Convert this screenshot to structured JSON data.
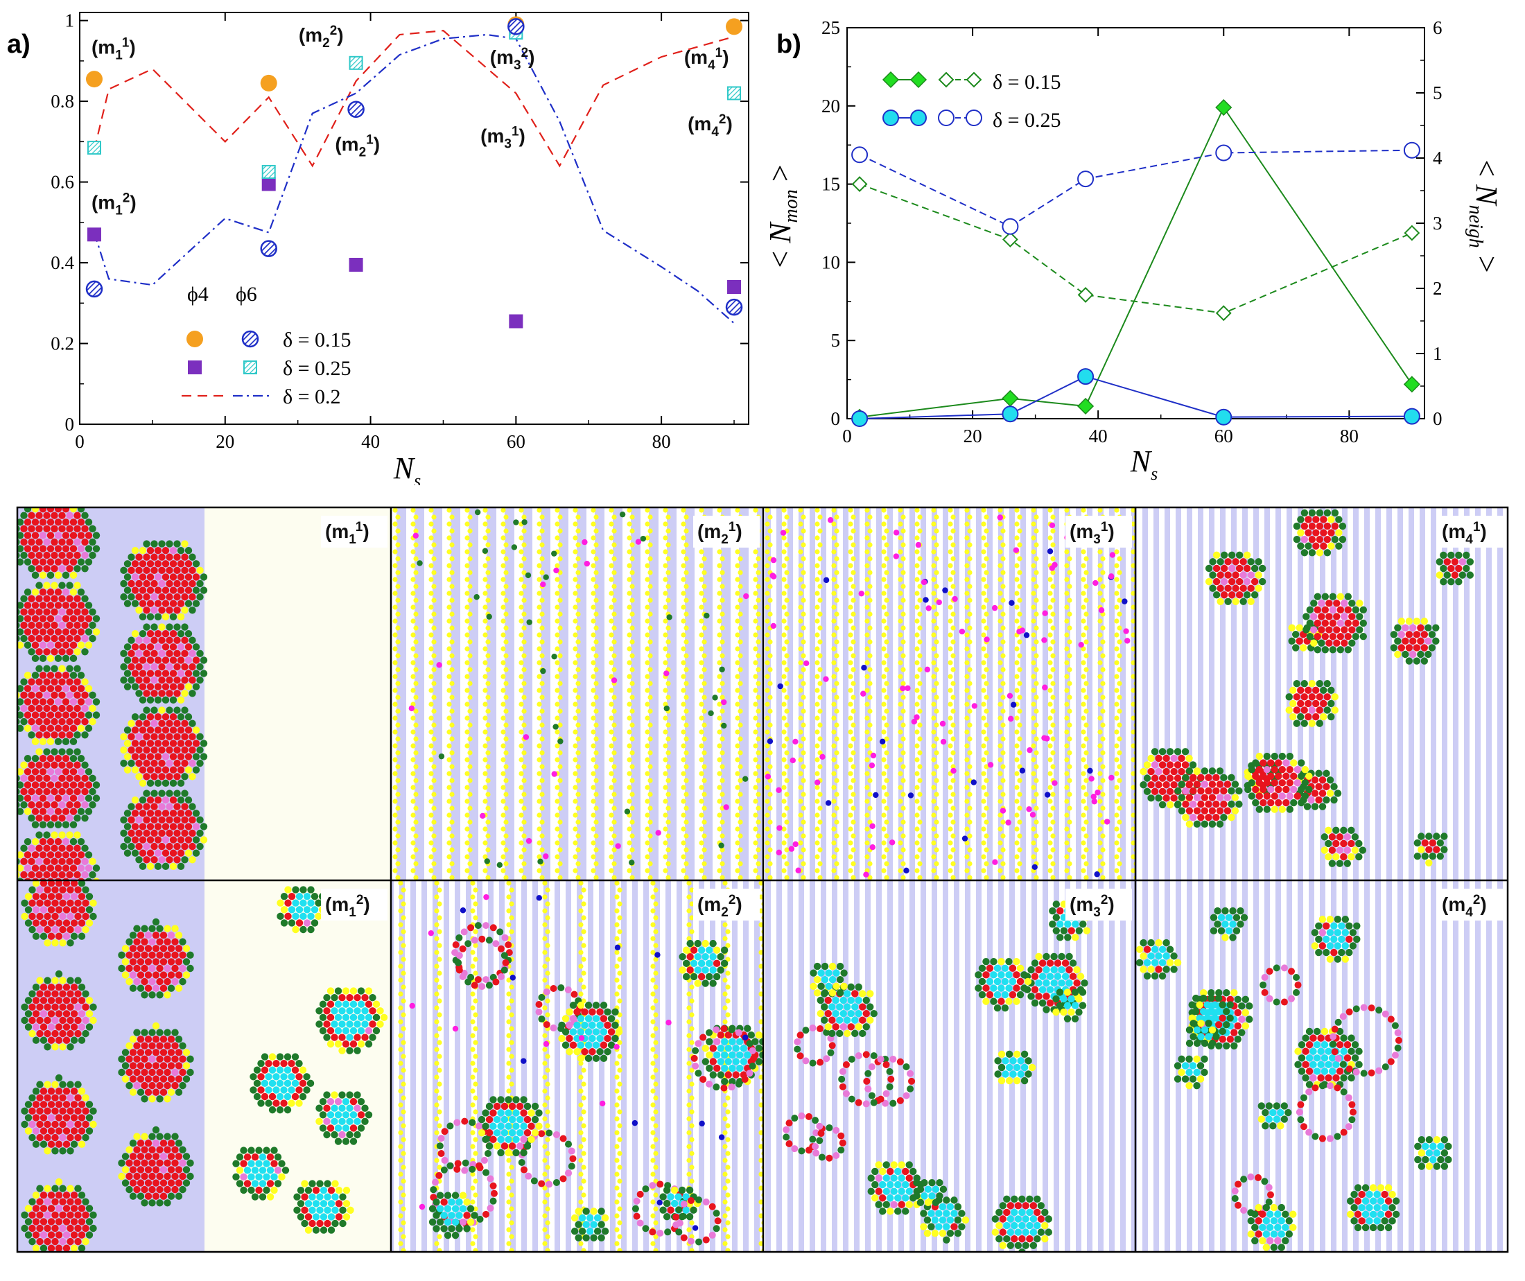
{
  "chart_data": [
    {
      "panel": "a)",
      "type": "scatter",
      "xlabel": "N_s",
      "ylabel": "",
      "xlim": [
        0,
        92
      ],
      "ylim": [
        0,
        1.02
      ],
      "xticks": [
        "0",
        "20",
        "40",
        "60",
        "80"
      ],
      "yticks": [
        "0",
        "0.2",
        "0.4",
        "0.6",
        "0.8",
        "1"
      ],
      "legend_header": [
        "ϕ4",
        "ϕ6"
      ],
      "series": [
        {
          "name": "δ = 0.15",
          "quantity": "ϕ4",
          "marker": "filled-circle",
          "color": "#f5a020",
          "x": [
            2,
            26,
            38,
            60,
            90
          ],
          "y": [
            0.855,
            0.845,
            0.78,
            0.99,
            0.985
          ]
        },
        {
          "name": "δ = 0.15",
          "quantity": "ϕ6",
          "marker": "hatched-circle",
          "color": "#1f2fc7",
          "x": [
            2,
            26,
            38,
            60,
            90
          ],
          "y": [
            0.335,
            0.435,
            0.78,
            0.985,
            0.29
          ]
        },
        {
          "name": "δ = 0.25",
          "quantity": "ϕ4",
          "marker": "filled-square",
          "color": "#7b2fbe",
          "x": [
            2,
            26,
            38,
            60,
            90
          ],
          "y": [
            0.47,
            0.595,
            0.395,
            0.255,
            0.34
          ]
        },
        {
          "name": "δ = 0.25",
          "quantity": "ϕ6",
          "marker": "hatched-square",
          "color": "#2ec8c8",
          "x": [
            2,
            26,
            38,
            60,
            90
          ],
          "y": [
            0.685,
            0.625,
            0.895,
            0.97,
            0.82
          ]
        },
        {
          "name": "δ = 0.2",
          "quantity": "ϕ4",
          "marker": "dashed-line",
          "color": "#e0201a",
          "x": [
            2,
            4,
            10,
            20,
            26,
            32,
            38,
            44,
            50,
            60,
            66,
            72,
            80,
            90
          ],
          "y": [
            0.68,
            0.83,
            0.88,
            0.7,
            0.81,
            0.64,
            0.85,
            0.965,
            0.975,
            0.82,
            0.64,
            0.84,
            0.91,
            0.96
          ]
        },
        {
          "name": "δ = 0.2",
          "quantity": "ϕ6",
          "marker": "dashdot-line",
          "color": "#1f2fc7",
          "x": [
            2,
            4,
            10,
            20,
            26,
            32,
            38,
            44,
            50,
            56,
            60,
            66,
            72,
            80,
            85,
            90
          ],
          "y": [
            0.475,
            0.36,
            0.345,
            0.51,
            0.475,
            0.77,
            0.82,
            0.915,
            0.955,
            0.965,
            0.955,
            0.75,
            0.48,
            0.39,
            0.33,
            0.25
          ]
        }
      ],
      "legend": [
        {
          "label": "δ = 0.15"
        },
        {
          "label": "δ = 0.25"
        },
        {
          "label": "δ = 0.2"
        }
      ],
      "annotations": [
        {
          "base": "(m",
          "sub": "1",
          "sup": "1",
          "tail": ")",
          "x": 2,
          "y": 0.935
        },
        {
          "base": "(m",
          "sub": "1",
          "sup": "2",
          "tail": ")",
          "x": 2,
          "y": 0.55
        },
        {
          "base": "(m",
          "sub": "2",
          "sup": "2",
          "tail": ")",
          "x": 30.5,
          "y": 0.965
        },
        {
          "base": "(m",
          "sub": "2",
          "sup": "1",
          "tail": ")",
          "x": 35.5,
          "y": 0.695
        },
        {
          "base": "(m",
          "sub": "3",
          "sup": "2",
          "tail": ")",
          "x": 56.8,
          "y": 0.91
        },
        {
          "base": "(m",
          "sub": "3",
          "sup": "1",
          "tail": ")",
          "x": 55.5,
          "y": 0.715
        },
        {
          "base": "(m",
          "sub": "4",
          "sup": "1",
          "tail": ")",
          "x": 83.5,
          "y": 0.91
        },
        {
          "base": "(m",
          "sub": "4",
          "sup": "2",
          "tail": ")",
          "x": 84,
          "y": 0.745
        }
      ]
    },
    {
      "panel": "b)",
      "type": "line",
      "xlabel": "N_s",
      "ylabel": "< N_mon >",
      "y2label": "< N_neigh >",
      "xlim": [
        0,
        92
      ],
      "ylim": [
        0,
        25
      ],
      "y2lim": [
        0,
        6
      ],
      "xticks": [
        "0",
        "20",
        "40",
        "60",
        "80"
      ],
      "yticks": [
        "0",
        "5",
        "10",
        "15",
        "20",
        "25"
      ],
      "y2ticks": [
        "0",
        "1",
        "2",
        "3",
        "4",
        "5",
        "6"
      ],
      "series": [
        {
          "name": "δ = 0.15",
          "axis": "left",
          "marker": "filled-diamond",
          "line": "solid",
          "color": "#1c8a1c",
          "x": [
            2,
            26,
            38,
            60,
            90
          ],
          "y": [
            0.1,
            1.3,
            0.8,
            19.9,
            2.2
          ]
        },
        {
          "name": "δ = 0.15",
          "axis": "right",
          "marker": "open-diamond",
          "line": "dashed",
          "color": "#1c8a1c",
          "x": [
            2,
            26,
            38,
            60,
            90
          ],
          "y": [
            3.6,
            2.75,
            1.9,
            1.62,
            2.85
          ]
        },
        {
          "name": "δ = 0.25",
          "axis": "left",
          "marker": "filled-circle",
          "line": "solid",
          "color": "#1f2fc7",
          "x": [
            2,
            26,
            38,
            60,
            90
          ],
          "y": [
            0.0,
            0.3,
            2.7,
            0.1,
            0.15
          ]
        },
        {
          "name": "δ = 0.25",
          "axis": "right",
          "marker": "open-circle",
          "line": "dashed",
          "color": "#1f2fc7",
          "x": [
            2,
            26,
            38,
            60,
            90
          ],
          "y": [
            4.05,
            2.95,
            3.68,
            4.08,
            4.12
          ]
        }
      ],
      "legend": [
        {
          "label": "δ = 0.15"
        },
        {
          "label": "δ = 0.25"
        }
      ]
    }
  ],
  "snapshots": {
    "row1": [
      {
        "base": "(m",
        "sub": "1",
        "sup": "1",
        "tail": ")"
      },
      {
        "base": "(m",
        "sub": "2",
        "sup": "1",
        "tail": ")"
      },
      {
        "base": "(m",
        "sub": "3",
        "sup": "1",
        "tail": ")"
      },
      {
        "base": "(m",
        "sub": "4",
        "sup": "1",
        "tail": ")"
      }
    ],
    "row2": [
      {
        "base": "(m",
        "sub": "1",
        "sup": "2",
        "tail": ")"
      },
      {
        "base": "(m",
        "sub": "2",
        "sup": "2",
        "tail": ")"
      },
      {
        "base": "(m",
        "sub": "3",
        "sup": "2",
        "tail": ")"
      },
      {
        "base": "(m",
        "sub": "4",
        "sup": "2",
        "tail": ")"
      }
    ],
    "colors": {
      "substrate_stripe": "#cdcdf5",
      "substrate_plain": "#fdfdf0",
      "core": "#e8141e",
      "edge": "#1f7a2a",
      "defect": "#ff1ee0",
      "chain": "#ffff20",
      "mixed": "#e87ad8",
      "hexcore": "#20e0f0",
      "isolated": "#1010c8"
    }
  }
}
